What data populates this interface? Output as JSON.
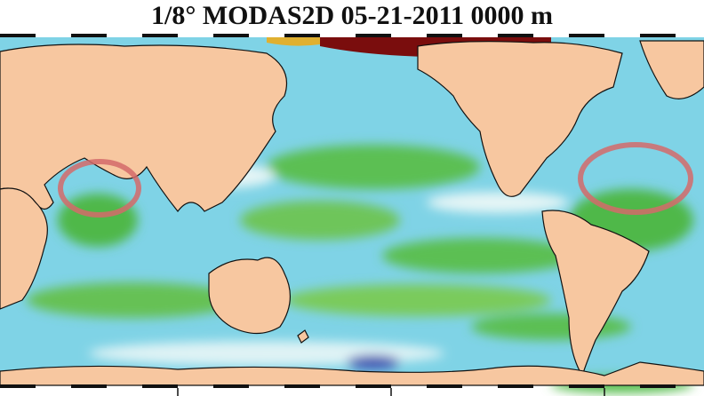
{
  "title": "1/8° MODAS2D 05-21-2011 0000 m"
}
